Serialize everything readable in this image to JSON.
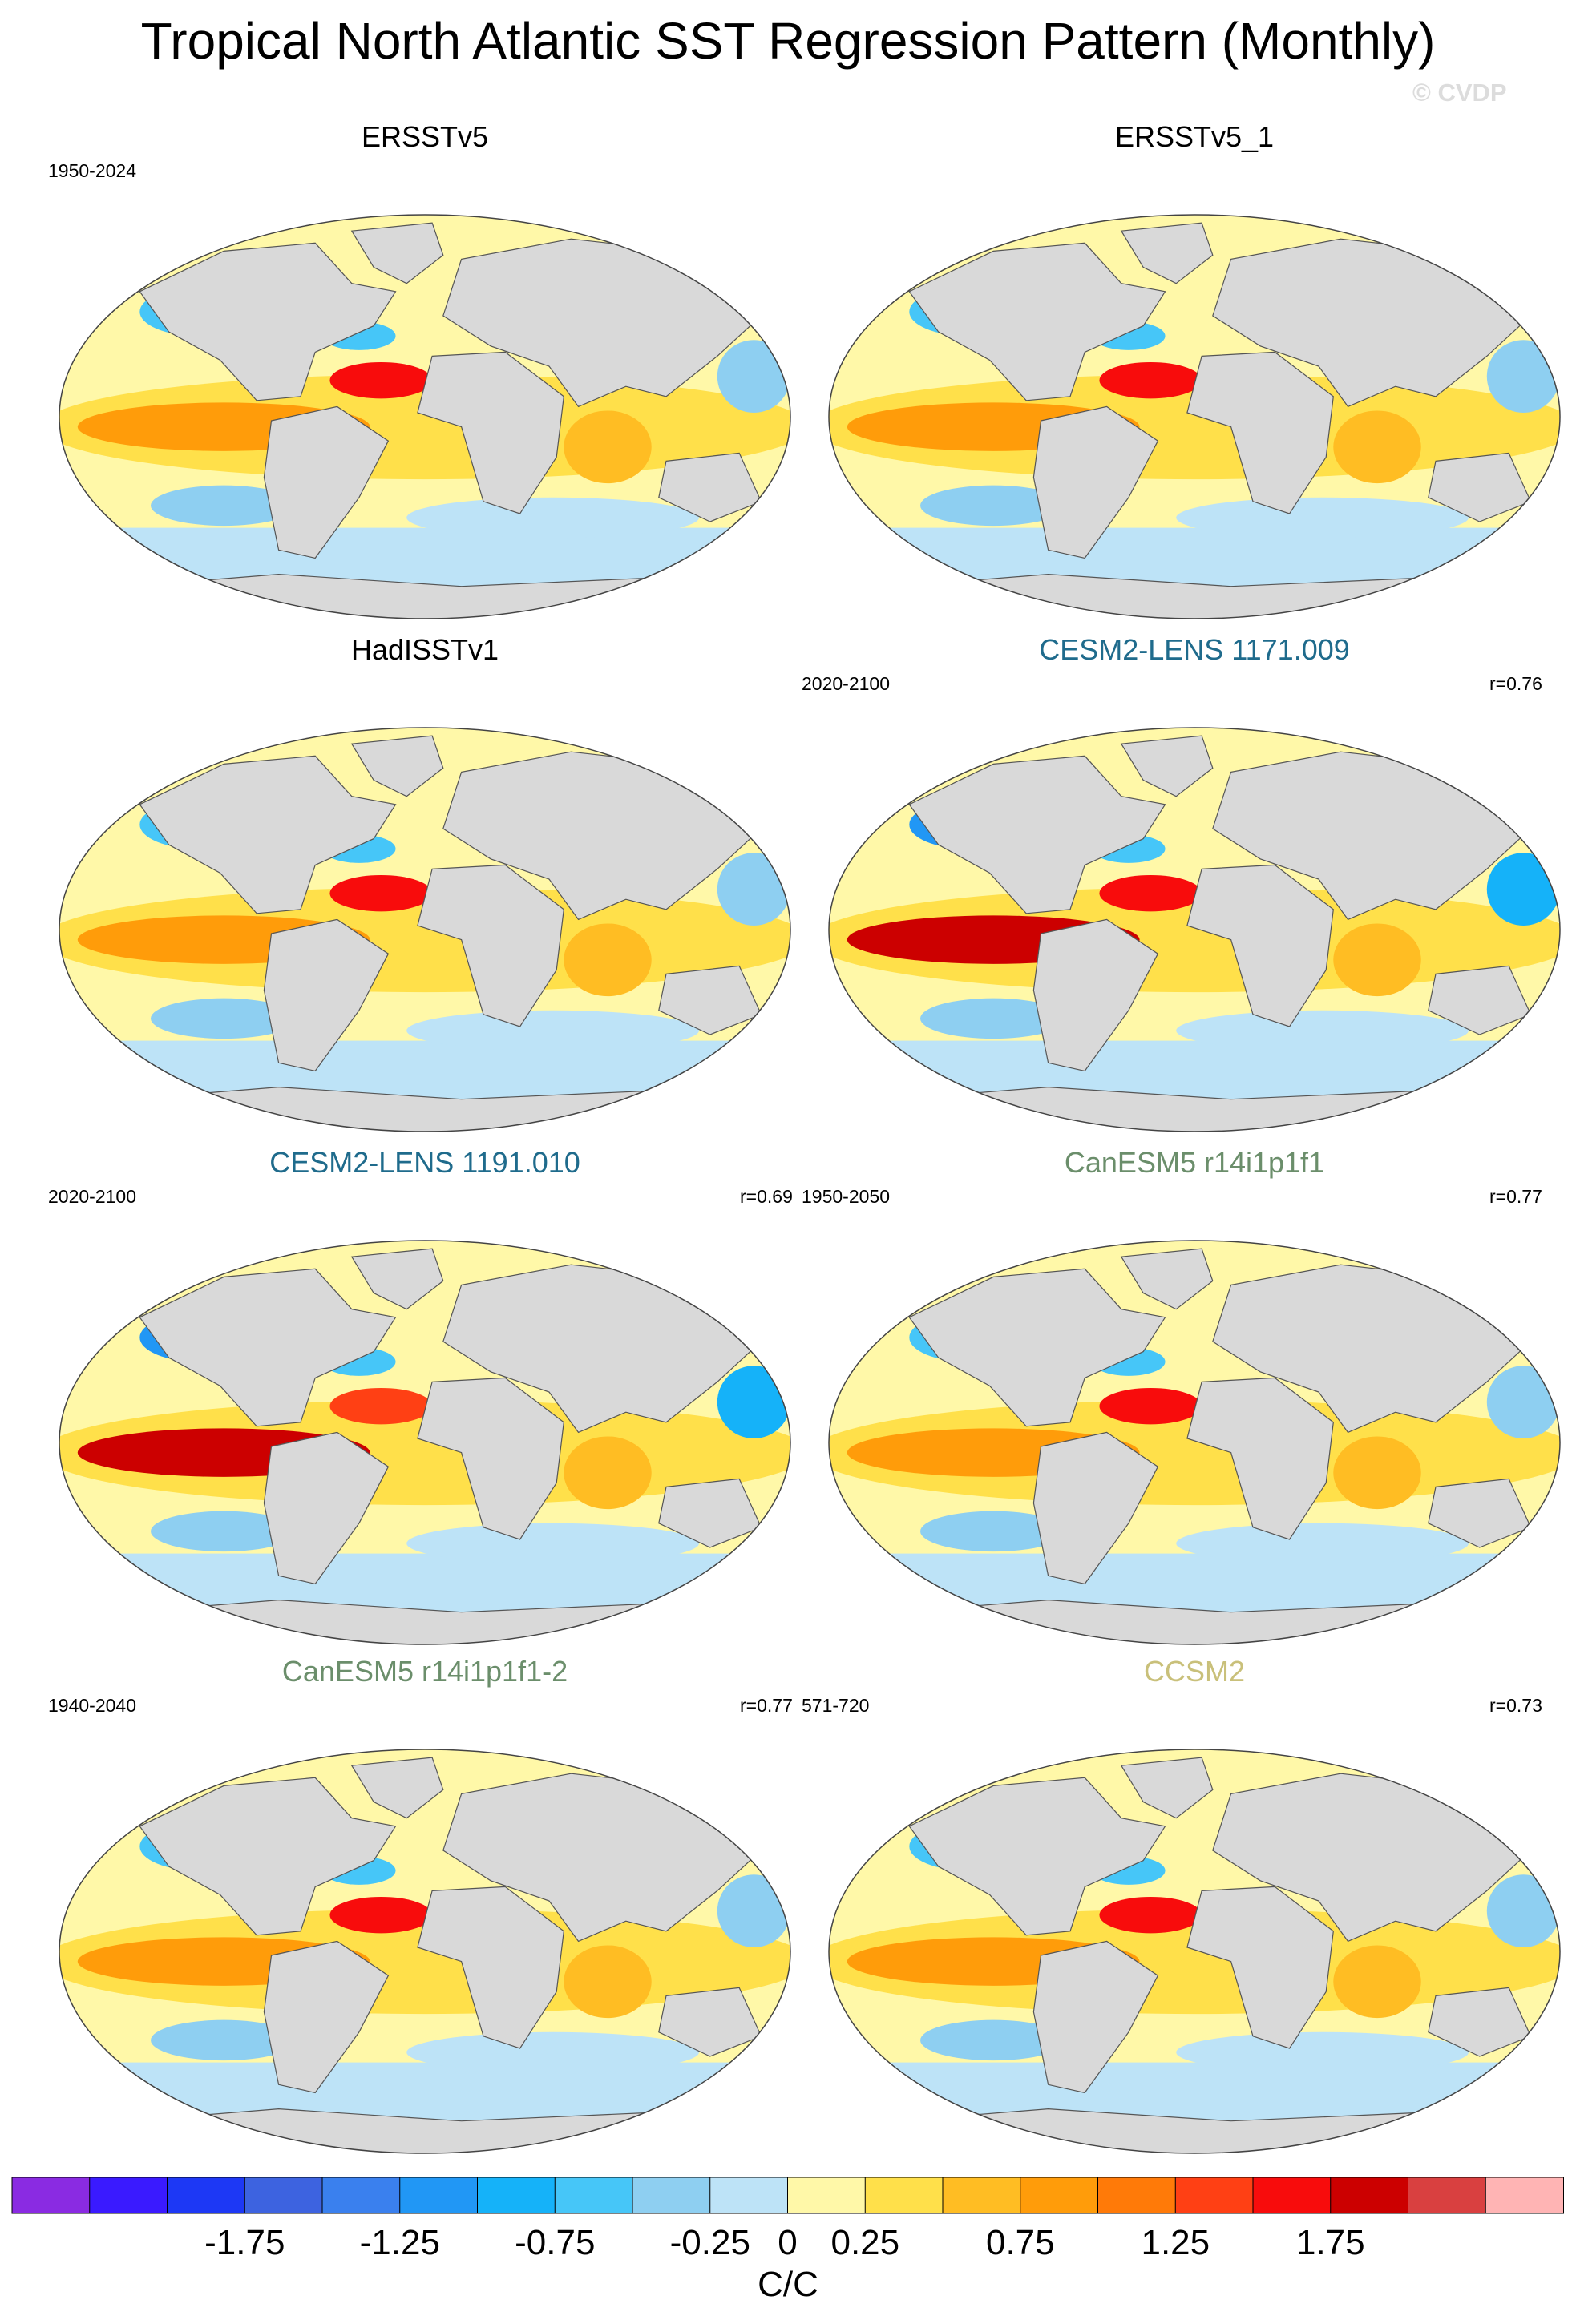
{
  "title": "Tropical North Atlantic SST Regression Pattern (Monthly)",
  "watermark": "© CVDP",
  "panels": [
    {
      "title": "ERSSTv5",
      "title_color": "#000000",
      "period": "1950-2024",
      "r": ""
    },
    {
      "title": "ERSSTv5_1",
      "title_color": "#000000",
      "period": "",
      "r": ""
    },
    {
      "title": "HadISSTv1",
      "title_color": "#000000",
      "period": "",
      "r": ""
    },
    {
      "title": "CESM2-LENS 1171.009",
      "title_color": "#1f6b8c",
      "period": "2020-2100",
      "r": "r=0.76"
    },
    {
      "title": "CESM2-LENS 1191.010",
      "title_color": "#1f6b8c",
      "period": "2020-2100",
      "r": "r=0.69"
    },
    {
      "title": "CanESM5 r14i1p1f1",
      "title_color": "#6b8e6b",
      "period": "1950-2050",
      "r": "r=0.77"
    },
    {
      "title": "CanESM5 r14i1p1f1-2",
      "title_color": "#6b8e6b",
      "period": "1940-2040",
      "r": "r=0.77"
    },
    {
      "title": "CCSM2",
      "title_color": "#c9c07a",
      "period": "571-720",
      "r": "r=0.73"
    }
  ],
  "chart_data": {
    "type": "heatmap",
    "title": "Tropical North Atlantic SST Regression Pattern (Monthly)",
    "projection": "Robinson (global)",
    "colorbar": {
      "label": "C/C",
      "levels": [
        -2.0,
        -1.75,
        -1.5,
        -1.25,
        -1.0,
        -0.75,
        -0.5,
        -0.25,
        0,
        0.25,
        0.5,
        0.75,
        1.0,
        1.25,
        1.5,
        1.75,
        2.0
      ],
      "tick_labels": [
        "-1.75",
        "-1.25",
        "-0.75",
        "-0.25",
        "0",
        "0.25",
        "0.75",
        "1.25",
        "1.75"
      ],
      "tick_values": [
        -1.75,
        -1.25,
        -0.75,
        -0.25,
        0,
        0.25,
        0.75,
        1.25,
        1.75
      ],
      "colors": [
        "#8a2be2",
        "#3a1aff",
        "#1d38f5",
        "#3d63e0",
        "#3a80ee",
        "#2197f5",
        "#15b2f9",
        "#46c6f8",
        "#8ecff1",
        "#bde3f7",
        "#fff8a8",
        "#ffe04a",
        "#ffbd23",
        "#ff9c0a",
        "#ff7a08",
        "#ff4014",
        "#f80c0c",
        "#cc0000",
        "#d94040",
        "#ffb4b4"
      ]
    },
    "datasets": [
      "ERSSTv5",
      "ERSSTv5_1",
      "HadISSTv1",
      "CESM2-LENS 1171.009",
      "CESM2-LENS 1191.010",
      "CanESM5 r14i1p1f1",
      "CanESM5 r14i1p1f1-2",
      "CCSM2"
    ],
    "pattern_correlations": [
      "",
      "",
      "",
      "r=0.76",
      "r=0.69",
      "r=0.77",
      "r=0.77",
      "r=0.73"
    ]
  }
}
